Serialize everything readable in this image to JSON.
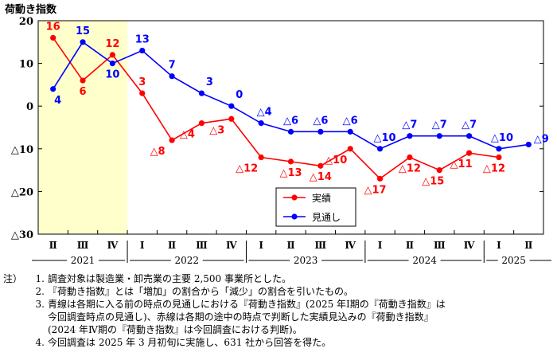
{
  "chart_data": {
    "type": "line",
    "ylabel": "荷動き指数",
    "ylim": [
      -30,
      20
    ],
    "yticks": [
      20,
      10,
      0,
      -10,
      -20,
      -30
    ],
    "ytick_labels": [
      "20",
      "10",
      "0",
      "△10",
      "△20",
      "△30"
    ],
    "quarters": [
      "Ⅱ",
      "Ⅲ",
      "Ⅳ",
      "Ⅰ",
      "Ⅱ",
      "Ⅲ",
      "Ⅳ",
      "Ⅰ",
      "Ⅱ",
      "Ⅲ",
      "Ⅳ",
      "Ⅰ",
      "Ⅱ",
      "Ⅲ",
      "Ⅳ",
      "Ⅰ",
      "Ⅱ"
    ],
    "years": [
      {
        "label": "2021",
        "start": 0,
        "end": 2
      },
      {
        "label": "2022",
        "start": 3,
        "end": 6
      },
      {
        "label": "2023",
        "start": 7,
        "end": 10
      },
      {
        "label": "2024",
        "start": 11,
        "end": 14
      },
      {
        "label": "2025",
        "start": 15,
        "end": 16
      }
    ],
    "series": [
      {
        "name": "実績",
        "color": "#ff0000",
        "values": [
          16,
          6,
          12,
          3,
          -8,
          -4,
          -3,
          -12,
          -13,
          -14,
          -10,
          -17,
          -12,
          -15,
          -11,
          -12,
          null
        ],
        "labels": [
          "16",
          "6",
          "12",
          "3",
          "△8",
          "△4",
          "△3",
          "△12",
          "△13",
          "△14",
          "△10",
          "△17",
          "△12",
          "△15",
          "△11",
          "△12",
          ""
        ]
      },
      {
        "name": "見通し",
        "color": "#0000ff",
        "values": [
          4,
          15,
          10,
          13,
          7,
          3,
          0,
          -4,
          -6,
          -6,
          -6,
          -10,
          -7,
          -7,
          -7,
          -10,
          -9
        ],
        "labels": [
          "4",
          "15",
          "10",
          "13",
          "7",
          "3",
          "0",
          "△4",
          "△6",
          "△6",
          "△6",
          "△10",
          "△7",
          "△7",
          "△7",
          "△10",
          "△9"
        ]
      }
    ],
    "legend": "center-right",
    "grid": false,
    "background_band": "#ffffcc"
  },
  "notes": {
    "prefix": "注）",
    "items": [
      {
        "num": "1.",
        "lines": [
          "調査対象は製造業・卸売業の主要 2,500 事業所とした。"
        ]
      },
      {
        "num": "2.",
        "lines": [
          "『荷動き指数』とは「増加」の割合から「減少」の割合を引いたもの。"
        ]
      },
      {
        "num": "3.",
        "lines": [
          "青線は各期に入る前の時点の見通しにおける『荷動き指数』(2025 年Ⅰ期の『荷動き指数』は",
          "今回調査時点の見通し)、赤線は各期の途中の時点で判断した実績見込みの『荷動き指数』",
          "(2024 年Ⅳ期の『荷動き指数』は今回調査における判断)。"
        ]
      },
      {
        "num": "4.",
        "lines": [
          "今回調査は 2025 年 3 月初旬に実施し、631 社から回答を得た。"
        ]
      }
    ]
  }
}
